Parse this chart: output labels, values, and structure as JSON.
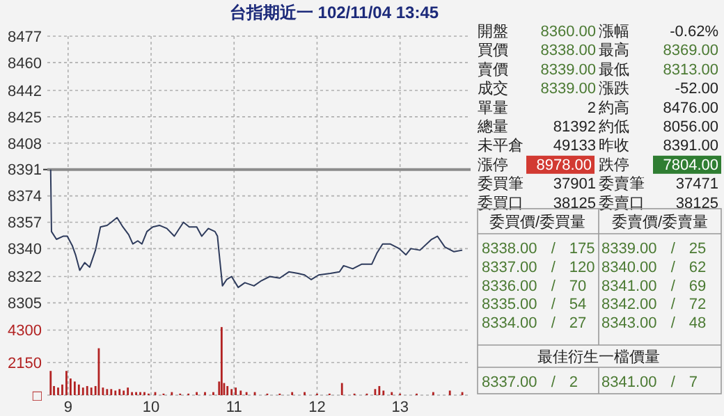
{
  "chart_data": [
    {
      "type": "line",
      "title": "台指期近一 102/11/04 13:45",
      "tick_labels": "y",
      "grid": true,
      "xlim": [
        8.75,
        13.85
      ],
      "xticks": [
        9,
        10,
        11,
        12,
        13
      ],
      "ylim": [
        8305,
        8477
      ],
      "yticks": [
        8305,
        8322,
        8340,
        8357,
        8374,
        8391,
        8408,
        8425,
        8442,
        8460,
        8477
      ],
      "ref_lines": [
        {
          "axis": "y",
          "value": 8391,
          "color": "#8c8c8c"
        }
      ],
      "series": [
        {
          "color": "#2e3b5c",
          "x": [
            8.79,
            8.8,
            8.86,
            8.94,
            8.99,
            9.05,
            9.09,
            9.14,
            9.2,
            9.26,
            9.33,
            9.39,
            9.47,
            9.52,
            9.59,
            9.66,
            9.73,
            9.78,
            9.84,
            9.89,
            9.95,
            10.02,
            10.1,
            10.19,
            10.28,
            10.39,
            10.46,
            10.55,
            10.61,
            10.69,
            10.77,
            10.8,
            10.82,
            10.86,
            10.91,
            10.97,
            11.05,
            11.13,
            11.24,
            11.32,
            11.43,
            11.55,
            11.66,
            11.77,
            11.85,
            11.93,
            12.02,
            12.16,
            12.27,
            12.32,
            12.43,
            12.54,
            12.66,
            12.72,
            12.79,
            12.88,
            12.99,
            13.07,
            13.13,
            13.24,
            13.38,
            13.45,
            13.54,
            13.65,
            13.75
          ],
          "values": [
            8391,
            8351,
            8346,
            8348,
            8348,
            8342,
            8336,
            8326,
            8331,
            8328,
            8339,
            8354,
            8355,
            8357,
            8360,
            8354,
            8349,
            8343,
            8345,
            8343,
            8351,
            8354,
            8355,
            8353,
            8348,
            8357,
            8354,
            8354,
            8348,
            8353,
            8351,
            8348,
            8337,
            8316,
            8320,
            8322,
            8315,
            8318,
            8316,
            8319,
            8322,
            8321,
            8325,
            8324,
            8323,
            8320,
            8323,
            8324,
            8325,
            8329,
            8327,
            8330,
            8330,
            8337,
            8343,
            8343,
            8340,
            8336,
            8340,
            8339,
            8346,
            8348,
            8341,
            8338,
            8339
          ]
        }
      ]
    },
    {
      "type": "bar",
      "color": "#b22222",
      "grid": true,
      "xlim": [
        8.75,
        13.85
      ],
      "xticks": [
        9,
        10,
        11,
        12,
        13
      ],
      "ylim": [
        0,
        4600
      ],
      "yticks": [
        {
          "value": 0,
          "label": "□"
        },
        2150,
        4300
      ],
      "x": [
        8.79,
        8.83,
        8.88,
        8.93,
        8.98,
        9.03,
        9.08,
        9.13,
        9.18,
        9.23,
        9.28,
        9.33,
        9.37,
        9.42,
        9.47,
        9.52,
        9.57,
        9.62,
        9.67,
        9.72,
        9.77,
        9.82,
        9.87,
        9.92,
        9.97,
        10.05,
        10.15,
        10.25,
        10.35,
        10.45,
        10.55,
        10.65,
        10.75,
        10.82,
        10.85,
        10.88,
        10.92,
        10.97,
        11.02,
        11.08,
        11.15,
        11.25,
        11.4,
        11.55,
        11.7,
        11.85,
        12.0,
        12.15,
        12.3,
        12.45,
        12.6,
        12.7,
        12.75,
        12.8,
        12.9,
        13.0,
        13.2,
        13.4,
        13.6,
        13.75
      ],
      "values": [
        1600,
        600,
        500,
        700,
        1600,
        1100,
        900,
        700,
        500,
        600,
        500,
        600,
        3100,
        500,
        400,
        400,
        300,
        400,
        300,
        500,
        200,
        200,
        200,
        200,
        100,
        200,
        100,
        200,
        100,
        100,
        200,
        200,
        200,
        900,
        4500,
        800,
        600,
        400,
        500,
        300,
        200,
        200,
        100,
        100,
        200,
        200,
        100,
        100,
        800,
        100,
        100,
        400,
        600,
        300,
        200,
        100,
        100,
        200,
        300,
        200
      ]
    },
    {
      "type": "other",
      "annotations": [
        "開盤",
        "8360.00",
        "漲幅",
        "-0.62%",
        "買價",
        "8338.00",
        "最高",
        "8369.00",
        "賣價",
        "8339.00",
        "最低",
        "8313.00",
        "成交",
        "8339.00",
        "漲跌",
        "-52.00",
        "單量",
        "2",
        "約高",
        "8476.00",
        "總量",
        "81392",
        "約低",
        "8056.00",
        "未平倉",
        "49133",
        "昨收",
        "8391.00",
        "漲停",
        "8978.00",
        "跌停",
        "7804.00",
        "委買筆",
        "37901",
        "委賣筆",
        "37471",
        "委買口",
        "38125",
        "委賣口",
        "38125",
        "委買價/委買量",
        "委賣價/委賣量",
        "8338.00 / 175",
        "8339.00 / 25",
        "8337.00 / 120",
        "8340.00 / 62",
        "8336.00 / 70",
        "8341.00 / 69",
        "8335.00 / 54",
        "8342.00 / 72",
        "8334.00 / 27",
        "8343.00 / 48",
        "最佳衍生一檔價量",
        "8337.00 / 2",
        "8341.00 / 7"
      ]
    }
  ]
}
